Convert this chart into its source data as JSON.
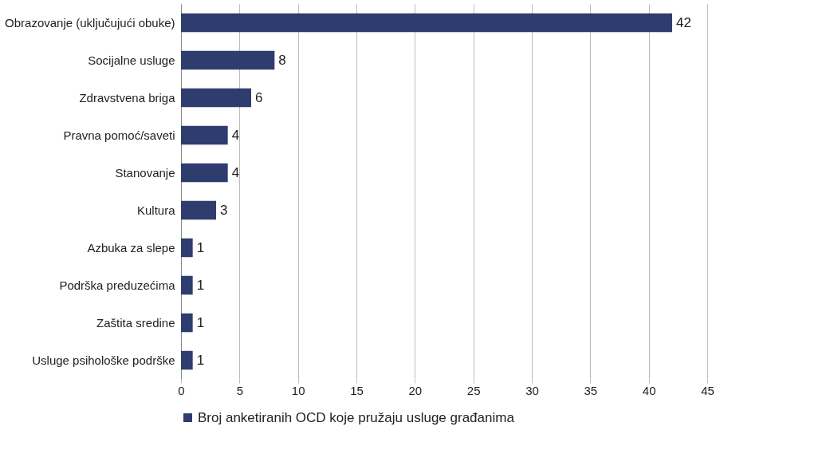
{
  "chart_data": {
    "type": "bar",
    "orientation": "horizontal",
    "categories": [
      "Obrazovanje (uključujući obuke)",
      "Socijalne usluge",
      "Zdravstvena briga",
      "Pravna pomoć/saveti",
      "Stanovanje",
      "Kultura",
      "Azbuka za slepe",
      "Podrška preduzećima",
      "Zaštita sredine",
      "Usluge psihološke podrške"
    ],
    "series": [
      {
        "name": "Broj anketiranih OCD koje pružaju usluge građanima",
        "color": "#2e3d6e",
        "values": [
          42,
          8,
          6,
          4,
          4,
          3,
          1,
          1,
          1,
          1
        ]
      }
    ],
    "xlim": [
      0,
      45
    ],
    "xticks": [
      0,
      5,
      10,
      15,
      20,
      25,
      30,
      35,
      40,
      45
    ],
    "grid": "x",
    "legend": "bottom",
    "data_labels": true
  }
}
